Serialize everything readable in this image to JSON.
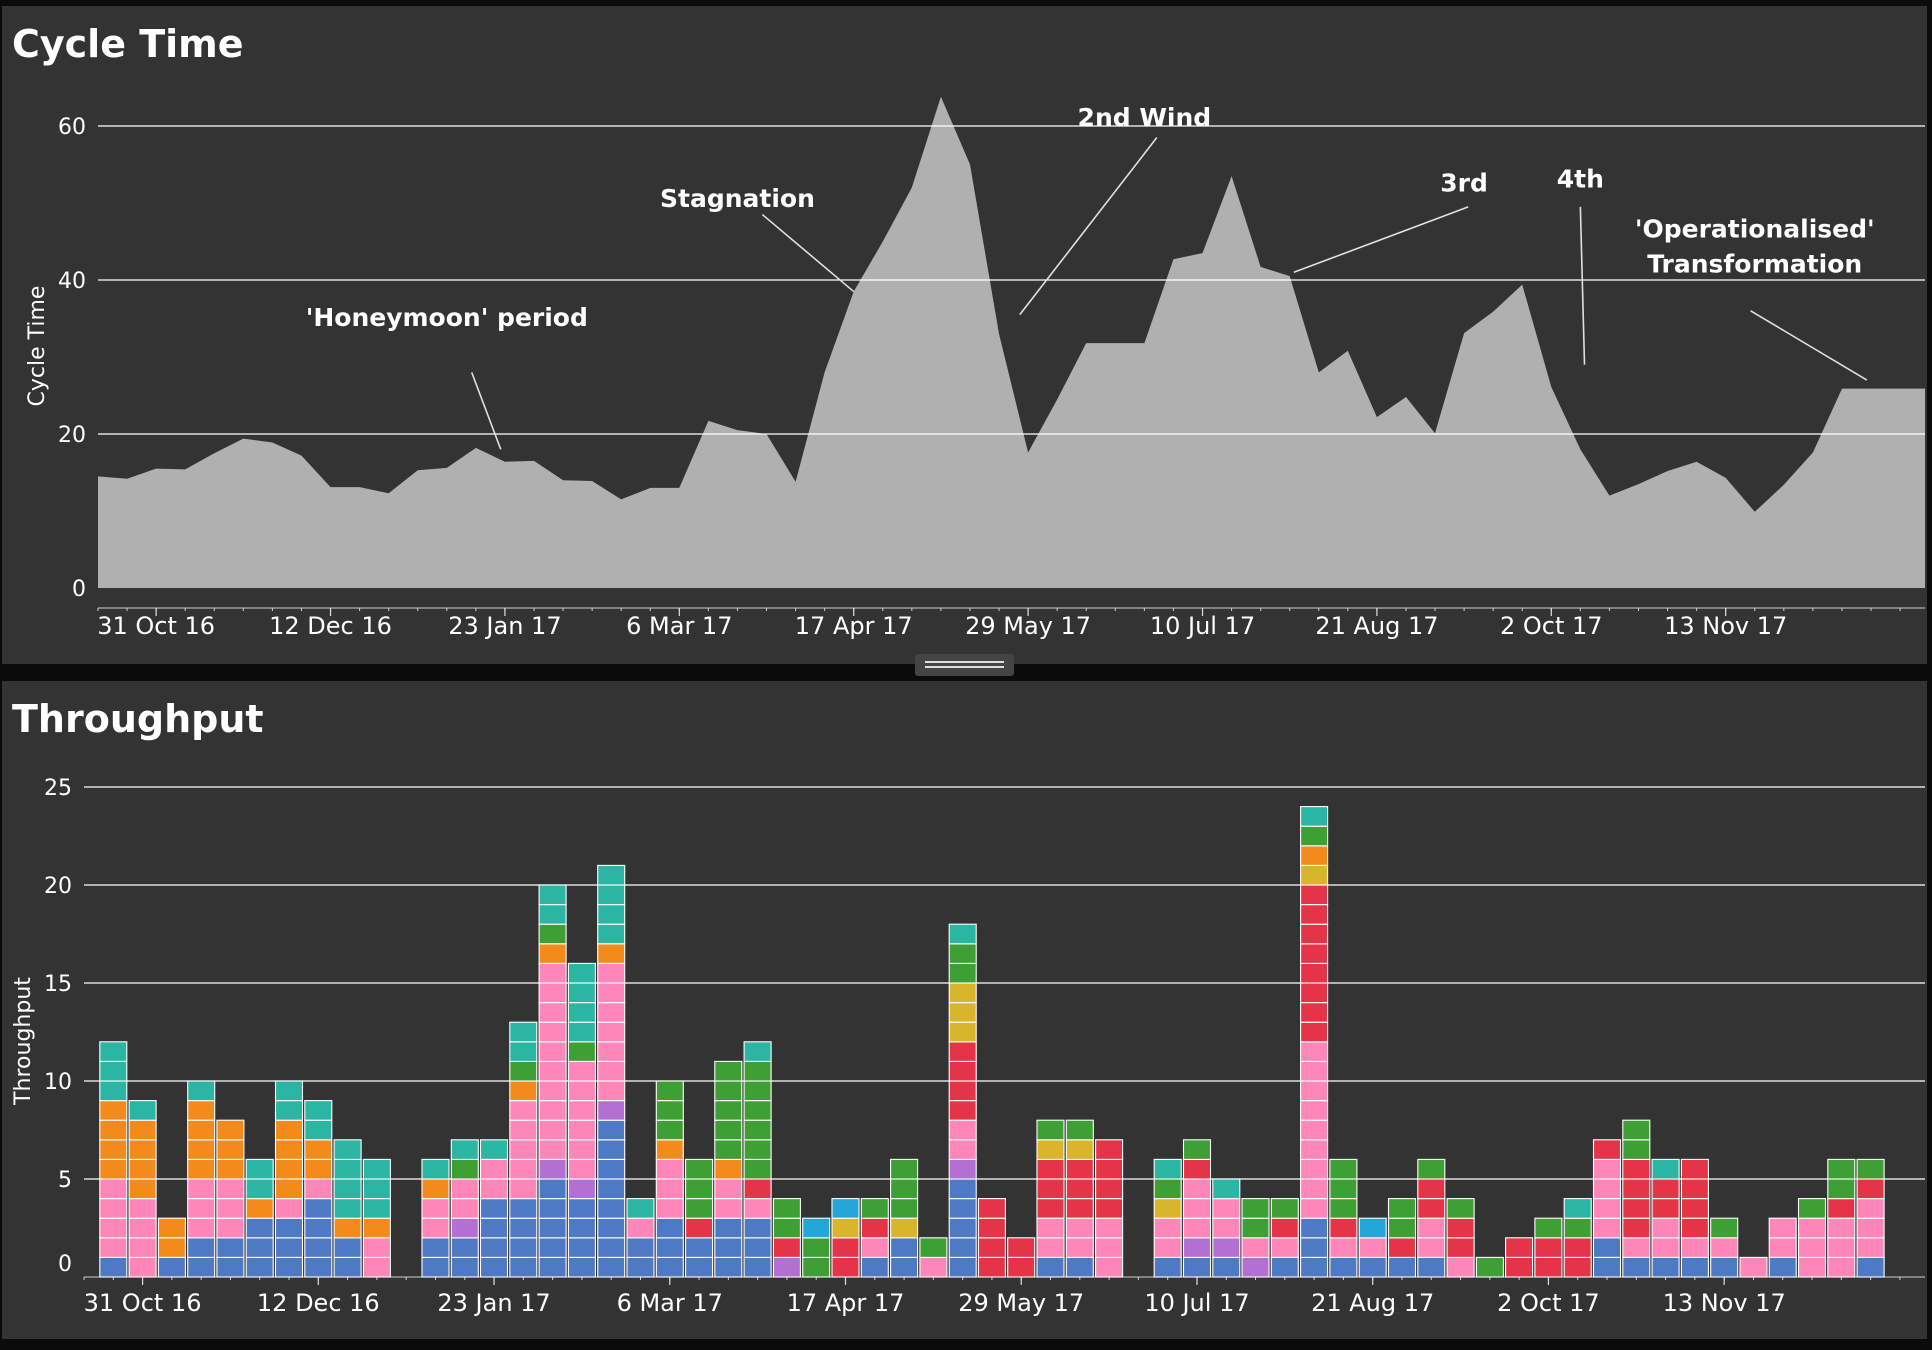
{
  "colors": {
    "panel_bg": "#333333",
    "page_bg": "#0b0b0b",
    "area_fill": "#b0b0b0",
    "gridline": "#ffffff",
    "text": "#ffffff",
    "annotation_line": "#e0e0e0",
    "blue": "#4e79c4",
    "pink": "#ff86b8",
    "purple": "#b36fd1",
    "orange": "#f28a1c",
    "teal": "#2bb6a4",
    "green": "#3e9f35",
    "red": "#e53448",
    "yellow": "#d8b52a",
    "cyan": "#22a7d6"
  },
  "cycle_panel": {
    "title": "Cycle Time",
    "ylabel": "Cycle Time"
  },
  "throughput_panel": {
    "title": "Throughput",
    "ylabel": "Throughput"
  },
  "splitter_icon": "drag-handle-icon",
  "chart_data": [
    {
      "type": "area",
      "title": "Cycle Time",
      "ylabel": "Cycle Time",
      "x_start": "2016-10-17",
      "x_end": "2017-12-31",
      "ylim": [
        0,
        68
      ],
      "yticks": [
        0,
        20,
        40,
        60
      ],
      "xtick_labels": [
        "31 Oct 16",
        "12 Dec 16",
        "23 Jan 17",
        "6 Mar 17",
        "17 Apr 17",
        "29 May 17",
        "10 Jul 17",
        "21 Aug 17",
        "2 Oct 17",
        "13 Nov 17"
      ],
      "xtick_dates": [
        "2016-10-31",
        "2016-12-12",
        "2017-01-23",
        "2017-03-06",
        "2017-04-17",
        "2017-05-29",
        "2017-07-10",
        "2017-08-21",
        "2017-10-02",
        "2017-11-13"
      ],
      "grid": true,
      "x": [
        "2016-10-17",
        "2016-10-24",
        "2016-10-31",
        "2016-11-07",
        "2016-11-14",
        "2016-11-21",
        "2016-11-28",
        "2016-12-05",
        "2016-12-12",
        "2016-12-19",
        "2016-12-26",
        "2017-01-02",
        "2017-01-09",
        "2017-01-16",
        "2017-01-23",
        "2017-01-30",
        "2017-02-06",
        "2017-02-13",
        "2017-02-20",
        "2017-02-27",
        "2017-03-06",
        "2017-03-13",
        "2017-03-20",
        "2017-03-27",
        "2017-04-03",
        "2017-04-10",
        "2017-04-17",
        "2017-04-24",
        "2017-05-01",
        "2017-05-08",
        "2017-05-15",
        "2017-05-22",
        "2017-05-29",
        "2017-06-05",
        "2017-06-12",
        "2017-06-19",
        "2017-06-26",
        "2017-07-03",
        "2017-07-10",
        "2017-07-17",
        "2017-07-24",
        "2017-07-31",
        "2017-08-07",
        "2017-08-14",
        "2017-08-21",
        "2017-08-28",
        "2017-09-04",
        "2017-09-11",
        "2017-09-18",
        "2017-09-25",
        "2017-10-02",
        "2017-10-09",
        "2017-10-16",
        "2017-10-23",
        "2017-10-30",
        "2017-11-06",
        "2017-11-13",
        "2017-11-20",
        "2017-11-27",
        "2017-12-04",
        "2017-12-11",
        "2017-12-18",
        "2017-12-25",
        "2017-12-31"
      ],
      "values": [
        14.5,
        14.2,
        15.5,
        15.4,
        17.5,
        19.4,
        18.9,
        17.2,
        13.1,
        13.1,
        12.3,
        15.3,
        15.6,
        18.2,
        16.4,
        16.5,
        14,
        13.9,
        11.5,
        13,
        13,
        21.7,
        20.5,
        20,
        13.8,
        28,
        38.5,
        45,
        52,
        63.8,
        55,
        33,
        17.6,
        24.5,
        31.8,
        31.8,
        31.8,
        42.7,
        43.5,
        53.5,
        41.7,
        40.5,
        28,
        30.8,
        22.2,
        24.8,
        20.1,
        33.1,
        35.9,
        39.4,
        26.1,
        18,
        12,
        13.5,
        15.2,
        16.4,
        14.3,
        9.9,
        13.4,
        17.6,
        25.9,
        25.9,
        25.9,
        25.9
      ],
      "annotations": [
        {
          "text": "'Honeymoon' period",
          "x": "2017-01-09",
          "y": 34
        },
        {
          "text": "Stagnation",
          "x": "2017-03-20",
          "y": 49.5
        },
        {
          "text": "2nd Wind",
          "x": "2017-06-26",
          "y": 60
        },
        {
          "text": "3rd",
          "x": "2017-09-11",
          "y": 51.5
        },
        {
          "text": "4th",
          "x": "2017-10-09",
          "y": 52
        },
        {
          "text": "'Operationalised'",
          "x": "2017-11-20",
          "y": 45.5
        },
        {
          "text": "Transformation",
          "x": "2017-11-20",
          "y": 41
        }
      ],
      "annotation_lines": [
        {
          "from": [
            "2017-01-15",
            28
          ],
          "to": [
            "2017-01-22",
            18
          ]
        },
        {
          "from": [
            "2017-03-26",
            48.5
          ],
          "to": [
            "2017-04-17",
            38.5
          ]
        },
        {
          "from": [
            "2017-06-29",
            58.5
          ],
          "to": [
            "2017-05-27",
            35.5
          ]
        },
        {
          "from": [
            "2017-09-12",
            49.5
          ],
          "to": [
            "2017-08-01",
            41
          ]
        },
        {
          "from": [
            "2017-10-09",
            49.5
          ],
          "to": [
            "2017-10-10",
            29
          ]
        },
        {
          "from": [
            "2017-11-19",
            36
          ],
          "to": [
            "2017-12-17",
            27
          ]
        }
      ]
    },
    {
      "type": "bar",
      "stacked": true,
      "unit_cells": true,
      "title": "Throughput",
      "ylabel": "Throughput",
      "x_start": "2016-10-17",
      "x_end": "2017-12-31",
      "ylim": [
        0,
        25
      ],
      "yticks": [
        0,
        5,
        10,
        15,
        20,
        25
      ],
      "xtick_labels": [
        "31 Oct 16",
        "12 Dec 16",
        "23 Jan 17",
        "6 Mar 17",
        "17 Apr 17",
        "29 May 17",
        "10 Jul 17",
        "21 Aug 17",
        "2 Oct 17",
        "13 Nov 17"
      ],
      "xtick_dates": [
        "2016-10-31",
        "2016-12-12",
        "2017-01-23",
        "2017-03-06",
        "2017-04-17",
        "2017-05-29",
        "2017-07-10",
        "2017-08-21",
        "2017-10-02",
        "2017-11-13"
      ],
      "grid": true,
      "series_order": [
        "blue",
        "purple",
        "pink",
        "red",
        "yellow",
        "orange",
        "green",
        "teal",
        "cyan"
      ],
      "bars": [
        {
          "x": "2016-10-24",
          "stack": {
            "blue": 1,
            "pink": 4,
            "orange": 4,
            "teal": 3
          }
        },
        {
          "x": "2016-10-31",
          "stack": {
            "pink": 4,
            "orange": 4,
            "teal": 1
          }
        },
        {
          "x": "2016-11-07",
          "stack": {
            "blue": 1,
            "orange": 2
          }
        },
        {
          "x": "2016-11-14",
          "stack": {
            "blue": 2,
            "pink": 3,
            "orange": 4,
            "teal": 1
          }
        },
        {
          "x": "2016-11-21",
          "stack": {
            "blue": 2,
            "pink": 3,
            "orange": 3
          }
        },
        {
          "x": "2016-11-28",
          "stack": {
            "blue": 3,
            "orange": 1,
            "teal": 2
          }
        },
        {
          "x": "2016-12-05",
          "stack": {
            "blue": 3,
            "pink": 1,
            "orange": 4,
            "teal": 2
          }
        },
        {
          "x": "2016-12-12",
          "stack": {
            "blue": 4,
            "pink": 1,
            "orange": 2,
            "teal": 2
          }
        },
        {
          "x": "2016-12-19",
          "stack": {
            "blue": 2,
            "orange": 1,
            "teal": 4
          }
        },
        {
          "x": "2016-12-26",
          "stack": {
            "pink": 2,
            "orange": 1,
            "teal": 3
          }
        },
        {
          "x": "2017-01-09",
          "stack": {
            "blue": 2,
            "pink": 2,
            "orange": 1,
            "teal": 1
          }
        },
        {
          "x": "2017-01-16",
          "stack": {
            "blue": 2,
            "purple": 1,
            "pink": 2,
            "green": 1,
            "teal": 1
          }
        },
        {
          "x": "2017-01-23",
          "stack": {
            "blue": 4,
            "pink": 2,
            "teal": 1
          }
        },
        {
          "x": "2017-01-30",
          "stack": {
            "blue": 4,
            "pink": 5,
            "orange": 1,
            "green": 1,
            "teal": 2
          }
        },
        {
          "x": "2017-02-06",
          "stack": {
            "blue": 5,
            "purple": 1,
            "pink": 10,
            "orange": 1,
            "green": 1,
            "teal": 2
          }
        },
        {
          "x": "2017-02-13",
          "stack": {
            "blue": 4,
            "purple": 1,
            "pink": 6,
            "green": 1,
            "teal": 4
          }
        },
        {
          "x": "2017-02-20",
          "stack": {
            "blue": 8,
            "purple": 1,
            "pink": 7,
            "orange": 1,
            "teal": 4
          }
        },
        {
          "x": "2017-02-27",
          "stack": {
            "blue": 2,
            "pink": 1,
            "teal": 1
          }
        },
        {
          "x": "2017-03-06",
          "stack": {
            "blue": 3,
            "pink": 3,
            "orange": 1,
            "green": 3
          }
        },
        {
          "x": "2017-03-13",
          "stack": {
            "blue": 2,
            "red": 1,
            "green": 3
          }
        },
        {
          "x": "2017-03-20",
          "stack": {
            "blue": 3,
            "pink": 2,
            "orange": 1,
            "green": 5
          }
        },
        {
          "x": "2017-03-27",
          "stack": {
            "blue": 3,
            "pink": 1,
            "red": 1,
            "green": 6,
            "teal": 1
          }
        },
        {
          "x": "2017-04-03",
          "stack": {
            "purple": 1,
            "red": 1,
            "green": 2
          }
        },
        {
          "x": "2017-04-10",
          "stack": {
            "green": 2,
            "cyan": 1
          }
        },
        {
          "x": "2017-04-17",
          "stack": {
            "red": 2,
            "yellow": 1,
            "cyan": 1
          }
        },
        {
          "x": "2017-04-24",
          "stack": {
            "blue": 1,
            "pink": 1,
            "red": 1,
            "green": 1
          }
        },
        {
          "x": "2017-05-01",
          "stack": {
            "blue": 2,
            "yellow": 1,
            "green": 3
          }
        },
        {
          "x": "2017-05-08",
          "stack": {
            "pink": 1,
            "green": 1
          }
        },
        {
          "x": "2017-05-15",
          "stack": {
            "blue": 5,
            "purple": 1,
            "pink": 2,
            "red": 4,
            "yellow": 3,
            "green": 2,
            "teal": 1
          }
        },
        {
          "x": "2017-05-22",
          "stack": {
            "red": 4
          }
        },
        {
          "x": "2017-05-29",
          "stack": {
            "red": 2
          }
        },
        {
          "x": "2017-06-05",
          "stack": {
            "blue": 1,
            "pink": 2,
            "red": 3,
            "yellow": 1,
            "green": 1
          }
        },
        {
          "x": "2017-06-12",
          "stack": {
            "blue": 1,
            "pink": 2,
            "red": 3,
            "yellow": 1,
            "green": 1
          }
        },
        {
          "x": "2017-06-19",
          "stack": {
            "pink": 3,
            "red": 4
          }
        },
        {
          "x": "2017-07-03",
          "stack": {
            "blue": 1,
            "pink": 2,
            "yellow": 1,
            "green": 1,
            "teal": 1
          }
        },
        {
          "x": "2017-07-10",
          "stack": {
            "blue": 1,
            "purple": 1,
            "pink": 3,
            "red": 1,
            "green": 1
          }
        },
        {
          "x": "2017-07-17",
          "stack": {
            "blue": 1,
            "purple": 1,
            "pink": 2,
            "teal": 1
          }
        },
        {
          "x": "2017-07-24",
          "stack": {
            "purple": 1,
            "pink": 1,
            "green": 2
          }
        },
        {
          "x": "2017-07-31",
          "stack": {
            "blue": 1,
            "pink": 1,
            "red": 1,
            "green": 1
          }
        },
        {
          "x": "2017-08-07",
          "stack": {
            "blue": 3,
            "pink": 9,
            "red": 8,
            "yellow": 1,
            "orange": 1,
            "green": 1,
            "teal": 1
          }
        },
        {
          "x": "2017-08-14",
          "stack": {
            "blue": 1,
            "pink": 1,
            "red": 1,
            "green": 3
          }
        },
        {
          "x": "2017-08-21",
          "stack": {
            "blue": 1,
            "pink": 1,
            "cyan": 1
          }
        },
        {
          "x": "2017-08-28",
          "stack": {
            "blue": 1,
            "red": 1,
            "green": 2
          }
        },
        {
          "x": "2017-09-04",
          "stack": {
            "blue": 1,
            "pink": 2,
            "red": 2,
            "green": 1
          }
        },
        {
          "x": "2017-09-11",
          "stack": {
            "pink": 1,
            "red": 2,
            "green": 1
          }
        },
        {
          "x": "2017-09-18",
          "stack": {
            "green": 1
          }
        },
        {
          "x": "2017-09-25",
          "stack": {
            "red": 2
          }
        },
        {
          "x": "2017-10-02",
          "stack": {
            "red": 2,
            "green": 1
          }
        },
        {
          "x": "2017-10-09",
          "stack": {
            "red": 2,
            "green": 1,
            "teal": 1
          }
        },
        {
          "x": "2017-10-16",
          "stack": {
            "blue": 2,
            "pink": 4,
            "red": 1
          }
        },
        {
          "x": "2017-10-23",
          "stack": {
            "blue": 1,
            "pink": 1,
            "red": 4,
            "green": 2
          }
        },
        {
          "x": "2017-10-30",
          "stack": {
            "blue": 1,
            "pink": 2,
            "red": 2,
            "teal": 1
          }
        },
        {
          "x": "2017-11-06",
          "stack": {
            "blue": 1,
            "pink": 1,
            "red": 4
          }
        },
        {
          "x": "2017-11-13",
          "stack": {
            "blue": 1,
            "pink": 1,
            "green": 1
          }
        },
        {
          "x": "2017-11-20",
          "stack": {
            "pink": 1
          }
        },
        {
          "x": "2017-11-27",
          "stack": {
            "blue": 1,
            "pink": 2
          }
        },
        {
          "x": "2017-12-04",
          "stack": {
            "pink": 3,
            "green": 1
          }
        },
        {
          "x": "2017-12-11",
          "stack": {
            "pink": 3,
            "red": 1,
            "green": 2
          }
        },
        {
          "x": "2017-12-18",
          "stack": {
            "blue": 1,
            "pink": 3,
            "red": 1,
            "green": 1
          }
        }
      ]
    }
  ]
}
